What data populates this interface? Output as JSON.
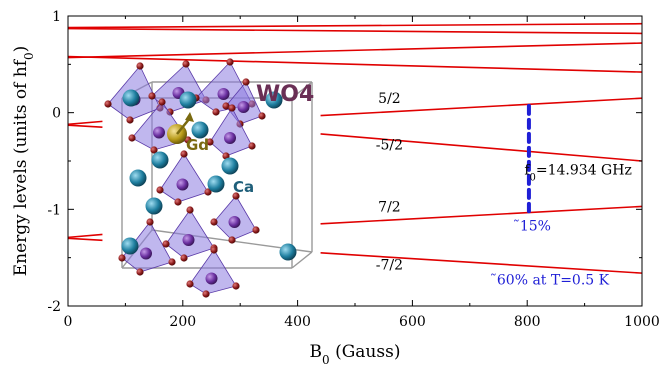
{
  "chart_data": {
    "type": "line",
    "xlabel": "B",
    "xlabel_sub": "0",
    "xlabel_unit": " (Gauss)",
    "ylabel": "Energy levels (units of hf",
    "ylabel_sub": "0",
    "ylabel_end": ")",
    "xlim": [
      0,
      1000
    ],
    "ylim": [
      -2,
      1
    ],
    "x_ticks": [
      0,
      200,
      400,
      600,
      800,
      1000
    ],
    "y_ticks": [
      -2,
      -1,
      0,
      1
    ],
    "x_tick_labels": [
      "0",
      "200",
      "400",
      "600",
      "800",
      "1000"
    ],
    "y_tick_labels": [
      "-2",
      "-1",
      "0",
      "1"
    ],
    "grid": false,
    "line_color": "#e00000",
    "series": [
      {
        "segments": [
          [
            [
              0,
              0.88
            ],
            [
              1000,
              0.92
            ]
          ]
        ]
      },
      {
        "segments": [
          [
            [
              0,
              0.87
            ],
            [
              1000,
              0.82
            ]
          ]
        ]
      },
      {
        "segments": [
          [
            [
              0,
              0.57
            ],
            [
              1000,
              0.72
            ]
          ]
        ]
      },
      {
        "segments": [
          [
            [
              0,
              0.58
            ],
            [
              1000,
              0.42
            ]
          ]
        ]
      },
      {
        "label": "5/2",
        "label_pos": [
          560,
          0.1
        ],
        "segments": [
          [
            [
              0,
              -0.12
            ],
            [
              60,
              -0.09
            ]
          ],
          [
            [
              440,
              -0.03
            ],
            [
              1000,
              0.15
            ]
          ]
        ]
      },
      {
        "label": "-5/2",
        "label_pos": [
          560,
          -0.38
        ],
        "segments": [
          [
            [
              0,
              -0.13
            ],
            [
              60,
              -0.15
            ]
          ],
          [
            [
              440,
              -0.22
            ],
            [
              1000,
              -0.5
            ]
          ]
        ]
      },
      {
        "label": "7/2",
        "label_pos": [
          560,
          -1.02
        ],
        "segments": [
          [
            [
              0,
              -1.29
            ],
            [
              60,
              -1.26
            ]
          ],
          [
            [
              440,
              -1.15
            ],
            [
              1000,
              -0.97
            ]
          ]
        ]
      },
      {
        "label": "-7/2",
        "label_pos": [
          560,
          -1.62
        ],
        "segments": [
          [
            [
              0,
              -1.3
            ],
            [
              60,
              -1.32
            ]
          ],
          [
            [
              440,
              -1.45
            ],
            [
              1000,
              -1.66
            ]
          ]
        ]
      }
    ],
    "transition_marker": {
      "x": 803,
      "y_top": 0.07,
      "y_bottom": -1.02,
      "color": "#1f1fd6"
    },
    "annotations": {
      "freq": {
        "pre": "f",
        "sub": "0",
        "post": "=14.934 GHz",
        "pos": [
          795,
          -0.64
        ]
      },
      "pct15": {
        "text": "˜15%",
        "pos": [
          775,
          -1.22
        ]
      },
      "pct60": {
        "text": "˜60% at T=0.5 K",
        "pos": [
          735,
          -1.78
        ]
      }
    },
    "inset": {
      "labels": {
        "wo4": "WO4",
        "gd": "Gd",
        "ca": "Ca"
      },
      "colors": {
        "polyhedron": "#8c7be0",
        "oxygen": "#8b1a1a",
        "calcium": "#1f7fa0",
        "gadolinium": "#b89b1a",
        "tungsten": "#6a2fa0",
        "frame": "#9a9a9a"
      }
    }
  }
}
